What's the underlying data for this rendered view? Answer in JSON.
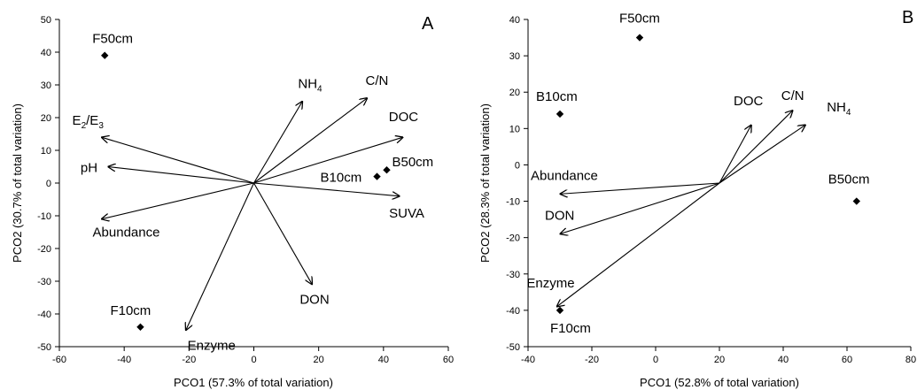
{
  "chart_data": [
    {
      "type": "scatter",
      "panel_letter": "A",
      "xlabel": "PCO1 (57.3% of total variation)",
      "ylabel": "PCO2 (30.7% of total variation)",
      "xlim": [
        -60,
        60
      ],
      "ylim": [
        -50,
        50
      ],
      "x_ticks": [
        -60,
        -40,
        -20,
        0,
        20,
        40,
        60
      ],
      "y_ticks": [
        -50,
        -40,
        -30,
        -20,
        -10,
        0,
        10,
        20,
        30,
        40,
        50
      ],
      "grid": false,
      "vector_origin": [
        0,
        0
      ],
      "points": [
        {
          "label": "F50cm",
          "x": -46,
          "y": 39
        },
        {
          "label": "F10cm",
          "x": -35,
          "y": -44
        },
        {
          "label": "B10cm",
          "x": 38,
          "y": 2
        },
        {
          "label": "B50cm",
          "x": 41,
          "y": 4
        }
      ],
      "vectors": [
        {
          "label": "NH",
          "sub": "4",
          "x": 15,
          "y": 25
        },
        {
          "label": "C/N",
          "x": 35,
          "y": 26
        },
        {
          "label": "DOC",
          "x": 46,
          "y": 14
        },
        {
          "label": "SUVA",
          "x": 45,
          "y": -4
        },
        {
          "label": "DON",
          "x": 18,
          "y": -31
        },
        {
          "label": "Enzyme",
          "x": -21,
          "y": -45
        },
        {
          "label": "E",
          "sub": "2",
          "mid": "/E",
          "sub2": "3",
          "x": -47,
          "y": 14
        },
        {
          "label": "pH",
          "x": -45,
          "y": 5
        },
        {
          "label": "Abundance",
          "x": -47,
          "y": -11
        }
      ]
    },
    {
      "type": "scatter",
      "panel_letter": "B",
      "xlabel": "PCO1 (52.8% of total variation)",
      "ylabel": "PCO2 (28.3% of total variation)",
      "xlim": [
        -40,
        80
      ],
      "ylim": [
        -50,
        40
      ],
      "x_ticks": [
        -40,
        -20,
        0,
        20,
        40,
        60,
        80
      ],
      "y_ticks": [
        -50,
        -40,
        -30,
        -20,
        -10,
        0,
        10,
        20,
        30,
        40
      ],
      "grid": false,
      "vector_origin": [
        20,
        -5
      ],
      "points": [
        {
          "label": "F50cm",
          "x": -5,
          "y": 35
        },
        {
          "label": "B10cm",
          "x": -30,
          "y": 14
        },
        {
          "label": "B50cm",
          "x": 63,
          "y": -10
        },
        {
          "label": "F10cm",
          "x": -30,
          "y": -40
        }
      ],
      "vectors": [
        {
          "label": "DOC",
          "x": 30,
          "y": 11
        },
        {
          "label": "C/N",
          "x": 43,
          "y": 15
        },
        {
          "label": "NH",
          "sub": "4",
          "x": 47,
          "y": 11
        },
        {
          "label": "Abundance",
          "x": -30,
          "y": -8
        },
        {
          "label": "DON",
          "x": -30,
          "y": -19
        },
        {
          "label": "Enzyme",
          "x": -31,
          "y": -39
        }
      ]
    }
  ]
}
